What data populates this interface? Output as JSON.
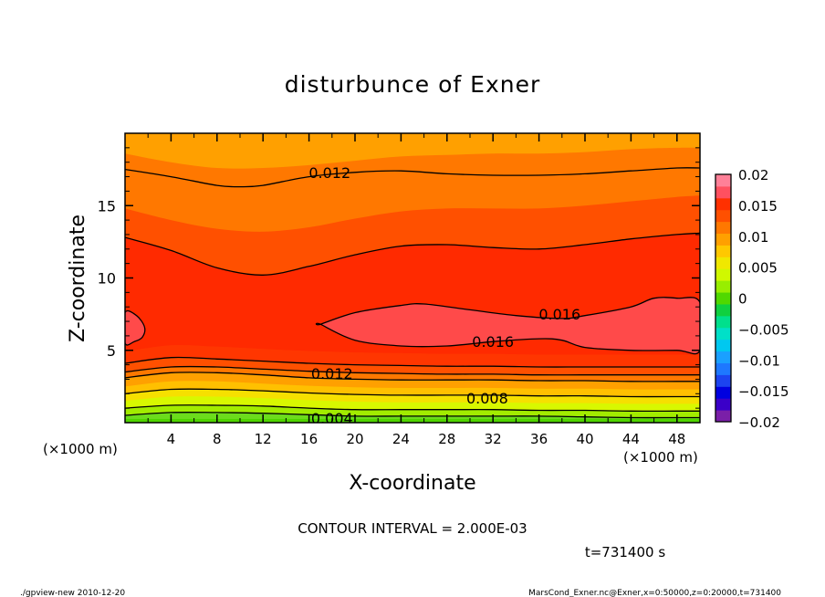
{
  "chart_data": {
    "type": "contour",
    "title": "disturbunce of Exner",
    "xlabel": "X-coordinate",
    "ylabel": "Z-coordinate",
    "x_unit": "(×1000 m)",
    "y_unit": "(×1000 m)",
    "xlim": [
      0,
      50
    ],
    "ylim": [
      0,
      20
    ],
    "x_ticks": [
      4,
      8,
      12,
      16,
      20,
      24,
      28,
      32,
      36,
      40,
      44,
      48
    ],
    "x_tick_labels": [
      "4",
      "8",
      "12",
      "16",
      "20",
      "24",
      "28",
      "32",
      "36",
      "40",
      "44",
      "48"
    ],
    "y_ticks": [
      5,
      10,
      15
    ],
    "y_tick_labels": [
      "5",
      "10",
      "15"
    ],
    "contour_interval": 0.002,
    "contour_labels": [
      {
        "text": "0.012",
        "x": 17.8,
        "z": 17.3
      },
      {
        "text": "0.016",
        "x": 37.8,
        "z": 7.5
      },
      {
        "text": "0.016",
        "x": 32.0,
        "z": 5.6
      },
      {
        "text": "0.012",
        "x": 18.0,
        "z": 3.4
      },
      {
        "text": "0.008",
        "x": 31.5,
        "z": 1.7
      },
      {
        "text": "0.004",
        "x": 18.0,
        "z": 0.3
      }
    ],
    "colorbar": {
      "min": -0.02,
      "max": 0.02,
      "tick_labels": [
        "0.02",
        "0.015",
        "0.01",
        "0.005",
        "0",
        "−0.005",
        "−0.01",
        "−0.015",
        "−0.02"
      ],
      "colors": [
        "#7a1fa8",
        "#3a00c8",
        "#0000e0",
        "#1c44f0",
        "#1e78ff",
        "#1aa0ff",
        "#00c8f0",
        "#00e0c8",
        "#00e08c",
        "#10d040",
        "#50d800",
        "#98ee00",
        "#d0f800",
        "#f0e800",
        "#ffc800",
        "#ffa000",
        "#ff7800",
        "#ff5000",
        "#ff3000",
        "#ff5060",
        "#ff8098"
      ]
    },
    "bands": [
      {
        "level": 0.002,
        "color": "#6cdc1c",
        "x": [
          0,
          4,
          8,
          12,
          16,
          20,
          24,
          28,
          32,
          36,
          40,
          44,
          48,
          50
        ],
        "z": [
          0.5,
          0.7,
          0.7,
          0.65,
          0.55,
          0.45,
          0.45,
          0.45,
          0.45,
          0.45,
          0.4,
          0.35,
          0.35,
          0.35
        ]
      },
      {
        "level": 0.004,
        "color": "#a2ec00",
        "x": [
          0,
          4,
          8,
          12,
          16,
          20,
          24,
          28,
          32,
          36,
          40,
          44,
          48,
          50
        ],
        "z": [
          1.0,
          1.2,
          1.2,
          1.15,
          1.0,
          0.9,
          0.9,
          0.9,
          0.9,
          0.85,
          0.85,
          0.8,
          0.8,
          0.8
        ]
      },
      {
        "level": 0.006,
        "color": "#d8f800",
        "x": [
          0,
          4,
          8,
          12,
          16,
          20,
          24,
          28,
          32,
          36,
          40,
          44,
          48,
          50
        ],
        "z": [
          1.5,
          1.8,
          1.8,
          1.7,
          1.55,
          1.45,
          1.4,
          1.4,
          1.4,
          1.35,
          1.35,
          1.3,
          1.3,
          1.3
        ]
      },
      {
        "level": 0.008,
        "color": "#f6e000",
        "x": [
          0,
          4,
          8,
          12,
          16,
          20,
          24,
          28,
          32,
          36,
          40,
          44,
          48,
          50
        ],
        "z": [
          2.0,
          2.3,
          2.3,
          2.2,
          2.05,
          1.95,
          1.9,
          1.9,
          1.9,
          1.85,
          1.85,
          1.8,
          1.8,
          1.8
        ]
      },
      {
        "level": 0.009,
        "color": "#ffc000",
        "x": [
          0,
          4,
          8,
          12,
          16,
          20,
          24,
          28,
          32,
          36,
          40,
          44,
          48,
          50
        ],
        "z": [
          2.5,
          2.85,
          2.85,
          2.7,
          2.55,
          2.45,
          2.4,
          2.4,
          2.4,
          2.35,
          2.35,
          2.3,
          2.3,
          2.3
        ]
      },
      {
        "level": 0.01,
        "color": "#ffa000",
        "x": [
          0,
          4,
          8,
          12,
          16,
          20,
          24,
          28,
          32,
          36,
          40,
          44,
          48,
          50
        ],
        "z": [
          3.1,
          3.45,
          3.45,
          3.3,
          3.1,
          3.0,
          2.95,
          2.95,
          2.95,
          2.9,
          2.9,
          2.85,
          2.85,
          2.85
        ]
      },
      {
        "level": 0.012,
        "color": "#ff7800",
        "x": [
          0,
          4,
          8,
          12,
          16,
          20,
          24,
          28,
          32,
          36,
          40,
          44,
          48,
          50
        ],
        "z": [
          3.5,
          3.85,
          3.85,
          3.7,
          3.55,
          3.45,
          3.4,
          3.35,
          3.35,
          3.3,
          3.3,
          3.3,
          3.3,
          3.3
        ]
      },
      {
        "level": 0.014,
        "color": "#ff5000",
        "x": [
          0,
          4,
          8,
          12,
          16,
          20,
          24,
          28,
          32,
          36,
          40,
          44,
          48,
          50
        ],
        "z": [
          4.1,
          4.5,
          4.4,
          4.25,
          4.1,
          4.0,
          3.95,
          3.9,
          3.9,
          3.85,
          3.85,
          3.85,
          3.85,
          3.85
        ]
      },
      {
        "level": 0.015,
        "color": "#ff3600",
        "x": [
          0,
          4,
          8,
          12,
          16,
          20,
          24,
          28,
          32,
          36,
          40,
          44,
          48,
          50
        ],
        "z": [
          4.9,
          5.35,
          5.25,
          5.1,
          4.95,
          4.85,
          4.8,
          4.75,
          4.75,
          4.7,
          4.7,
          4.7,
          4.7,
          4.7
        ]
      },
      {
        "level": 0.014,
        "color": "#ff5000",
        "x": [
          0,
          4,
          8,
          12,
          16,
          20,
          24,
          28,
          32,
          36,
          40,
          44,
          48,
          50
        ],
        "z": [
          12.8,
          11.9,
          10.7,
          10.2,
          10.8,
          11.6,
          12.2,
          12.3,
          12.1,
          12.0,
          12.3,
          12.7,
          13.0,
          13.1
        ]
      },
      {
        "level": 0.012,
        "color": "#ff7800",
        "x": [
          0,
          4,
          8,
          12,
          16,
          20,
          24,
          28,
          32,
          36,
          40,
          44,
          48,
          50
        ],
        "z": [
          14.8,
          14.0,
          13.4,
          13.2,
          13.5,
          14.1,
          14.6,
          14.8,
          14.8,
          14.8,
          15.0,
          15.3,
          15.6,
          15.7
        ]
      },
      {
        "level": 0.011,
        "color": "#ffa000",
        "x": [
          0,
          4,
          8,
          12,
          16,
          20,
          24,
          28,
          32,
          36,
          40,
          44,
          48,
          50
        ],
        "z": [
          18.6,
          18.0,
          17.6,
          17.6,
          17.8,
          18.1,
          18.4,
          18.5,
          18.6,
          18.6,
          18.7,
          18.9,
          19.0,
          19.0
        ]
      }
    ],
    "contour_lines": [
      {
        "level": 0.004,
        "x": [
          0,
          4,
          8,
          12,
          16,
          20,
          24,
          28,
          32,
          36,
          40,
          44,
          48,
          50
        ],
        "z": [
          0.5,
          0.7,
          0.7,
          0.65,
          0.55,
          0.45,
          0.45,
          0.45,
          0.45,
          0.45,
          0.4,
          0.35,
          0.35,
          0.35
        ]
      },
      {
        "level": 0.006,
        "x": [
          0,
          4,
          8,
          12,
          16,
          20,
          24,
          28,
          32,
          36,
          40,
          44,
          48,
          50
        ],
        "z": [
          1.0,
          1.2,
          1.2,
          1.15,
          1.0,
          0.9,
          0.9,
          0.9,
          0.9,
          0.85,
          0.85,
          0.8,
          0.8,
          0.8
        ]
      },
      {
        "level": 0.008,
        "x": [
          0,
          4,
          8,
          12,
          16,
          20,
          24,
          28,
          32,
          36,
          40,
          44,
          48,
          50
        ],
        "z": [
          2.0,
          2.3,
          2.3,
          2.2,
          2.05,
          1.95,
          1.9,
          1.9,
          1.9,
          1.85,
          1.85,
          1.8,
          1.8,
          1.8
        ]
      },
      {
        "level": 0.01,
        "x": [
          0,
          4,
          8,
          12,
          16,
          20,
          24,
          28,
          32,
          36,
          40,
          44,
          48,
          50
        ],
        "z": [
          3.1,
          3.45,
          3.45,
          3.3,
          3.1,
          3.0,
          2.95,
          2.95,
          2.95,
          2.9,
          2.9,
          2.85,
          2.85,
          2.85
        ]
      },
      {
        "level": 0.012,
        "x": [
          0,
          4,
          8,
          12,
          16,
          20,
          24,
          28,
          32,
          36,
          40,
          44,
          48,
          50
        ],
        "z": [
          3.5,
          3.85,
          3.85,
          3.7,
          3.55,
          3.45,
          3.4,
          3.35,
          3.35,
          3.3,
          3.3,
          3.3,
          3.3,
          3.3
        ]
      },
      {
        "level": 0.014,
        "x": [
          0,
          4,
          8,
          12,
          16,
          20,
          24,
          28,
          32,
          36,
          40,
          44,
          48,
          50
        ],
        "z": [
          4.1,
          4.5,
          4.4,
          4.25,
          4.1,
          4.0,
          3.95,
          3.9,
          3.9,
          3.85,
          3.85,
          3.85,
          3.85,
          3.85
        ]
      },
      {
        "level": 0.014,
        "x": [
          0,
          4,
          8,
          12,
          16,
          20,
          24,
          28,
          32,
          36,
          40,
          44,
          48,
          50
        ],
        "z": [
          12.8,
          11.9,
          10.7,
          10.2,
          10.8,
          11.6,
          12.2,
          12.3,
          12.1,
          12.0,
          12.3,
          12.7,
          13.0,
          13.1
        ]
      },
      {
        "level": 0.012,
        "x": [
          0,
          4,
          8,
          10,
          12,
          16,
          20,
          24,
          28,
          32,
          36,
          40,
          44,
          48,
          50
        ],
        "z": [
          17.5,
          17.0,
          16.4,
          16.3,
          16.4,
          17.0,
          17.3,
          17.4,
          17.2,
          17.1,
          17.1,
          17.2,
          17.4,
          17.6,
          17.6
        ]
      },
      {
        "level": 0.016,
        "closed": true,
        "x": [
          0,
          1.0,
          1.7,
          1.5,
          0.8,
          0
        ],
        "z": [
          7.6,
          7.4,
          6.6,
          5.9,
          5.6,
          5.5
        ]
      },
      {
        "level": 0.016,
        "closed": true,
        "x": [
          17.0,
          20,
          24,
          26,
          30,
          34,
          38,
          40,
          44,
          46,
          48,
          50,
          50,
          48,
          44,
          40,
          38,
          36,
          32,
          28,
          24,
          20,
          17.0
        ],
        "z": [
          6.8,
          7.6,
          8.1,
          8.2,
          7.8,
          7.4,
          7.2,
          7.4,
          8.0,
          8.6,
          8.6,
          8.3,
          5.0,
          5.0,
          5.0,
          5.2,
          5.7,
          5.8,
          5.6,
          5.3,
          5.3,
          5.7,
          6.8
        ]
      }
    ],
    "highlight_regions": [
      {
        "color": "#ff4a4a",
        "x": [
          0,
          1.0,
          1.7,
          1.5,
          0.8,
          0
        ],
        "z": [
          7.6,
          7.4,
          6.6,
          5.9,
          5.6,
          5.5
        ]
      },
      {
        "color": "#ff4a4a",
        "x": [
          17.0,
          20,
          24,
          26,
          30,
          34,
          38,
          40,
          44,
          46,
          48,
          50,
          50,
          48,
          44,
          40,
          38,
          36,
          32,
          28,
          24,
          20,
          17.0
        ],
        "z": [
          6.8,
          7.6,
          8.1,
          8.2,
          7.8,
          7.4,
          7.2,
          7.4,
          8.0,
          8.6,
          8.6,
          8.3,
          5.0,
          5.0,
          5.0,
          5.2,
          5.7,
          5.8,
          5.6,
          5.3,
          5.3,
          5.7,
          6.8
        ]
      }
    ],
    "base_color": "#ff2a00",
    "top_color": "#ffa800",
    "bottom_color": "#50d400"
  },
  "annotation": {
    "contour_interval_text": "CONTOUR INTERVAL = 2.000E-03",
    "time_text": "t=731400 s"
  },
  "footer": {
    "left": "./gpview-new  2010-12-20",
    "right": "MarsCond_Exner.nc@Exner,x=0:50000,z=0:20000,t=731400"
  }
}
